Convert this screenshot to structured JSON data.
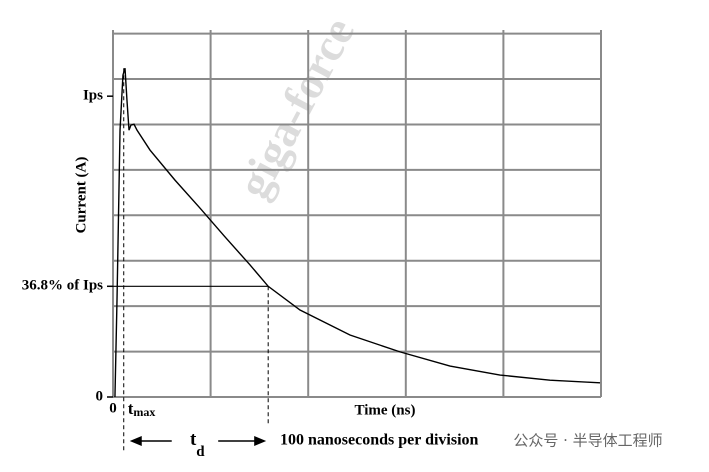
{
  "chart_data": {
    "type": "line",
    "x_label": "Time (ns)",
    "y_label": "Current (A)",
    "color": "#000000",
    "grid_color": "#8a8a8a",
    "xlim": [
      0,
      500
    ],
    "ylim": [
      0,
      122
    ],
    "xticks": [
      0
    ],
    "yticks": [
      0,
      {
        "value": 36.8,
        "label": "36.8% of Ips"
      },
      {
        "value": 100,
        "label": "Ips"
      }
    ],
    "x_gridlines": [
      0,
      100,
      200,
      300,
      400,
      500
    ],
    "y_gridlines": [
      0,
      15.1,
      30.2,
      45.3,
      60.4,
      75.5,
      90.6,
      105.7,
      120.8
    ],
    "x": [
      2.0,
      4.1,
      7.2,
      10.2,
      12.3,
      14.3,
      16.4,
      18.4,
      21.5,
      24.6,
      37.9,
      63.5,
      89.1,
      114.8,
      140.4,
      159,
      191.6,
      242.8,
      294.1,
      345.3,
      396.5,
      447.7,
      499
    ],
    "values": [
      0,
      32.2,
      88.7,
      107,
      109.3,
      98.7,
      88.7,
      90.4,
      90.7,
      88.7,
      82.1,
      72.1,
      62.8,
      53.2,
      43.9,
      36.8,
      28.9,
      20.6,
      15.0,
      10.3,
      7.3,
      5.6,
      4.7
    ],
    "tmax": {
      "label": "t",
      "subscript": "max",
      "x": 11
    },
    "td": {
      "label": "t",
      "subscript": "d",
      "x": 159
    },
    "division_note": "100 nanoseconds per division",
    "watermark": "giga-force",
    "footer": "公众号 · 半导体工程师"
  }
}
